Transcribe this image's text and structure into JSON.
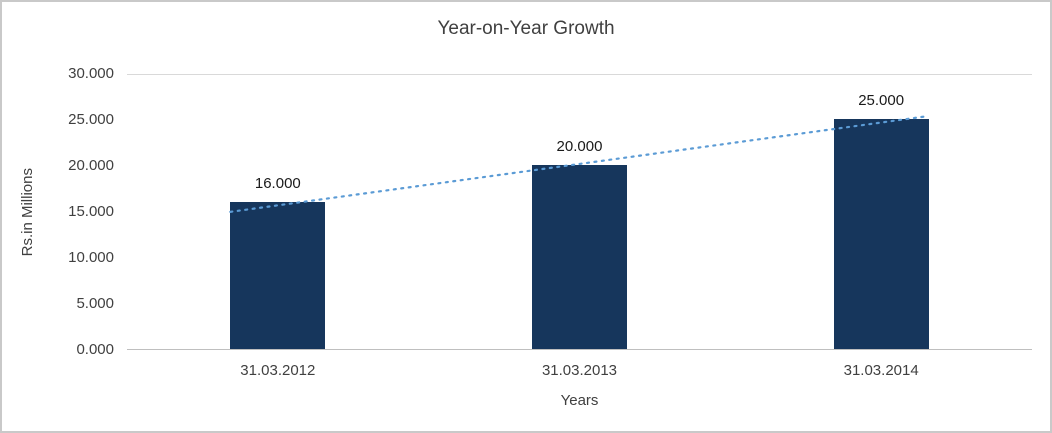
{
  "chart_data": {
    "type": "bar",
    "title": "Year-on-Year Growth",
    "categories": [
      "31.03.2012",
      "31.03.2013",
      "31.03.2014"
    ],
    "values": [
      16000,
      20000,
      25000
    ],
    "data_labels": [
      "16.000",
      "20.000",
      "25.000"
    ],
    "xlabel": "Years",
    "ylabel": "Rs.in Millions",
    "ylim": [
      0,
      30000
    ],
    "ytick_step": 5000,
    "ytick_labels": [
      "0.000",
      "5.000",
      "10.000",
      "15.000",
      "20.000",
      "25.000",
      "30.000"
    ],
    "bar_color": "#16365C",
    "grid": false,
    "legend": false,
    "trendline": {
      "type": "linear",
      "style": "dotted",
      "color": "#5B9BD5"
    }
  }
}
